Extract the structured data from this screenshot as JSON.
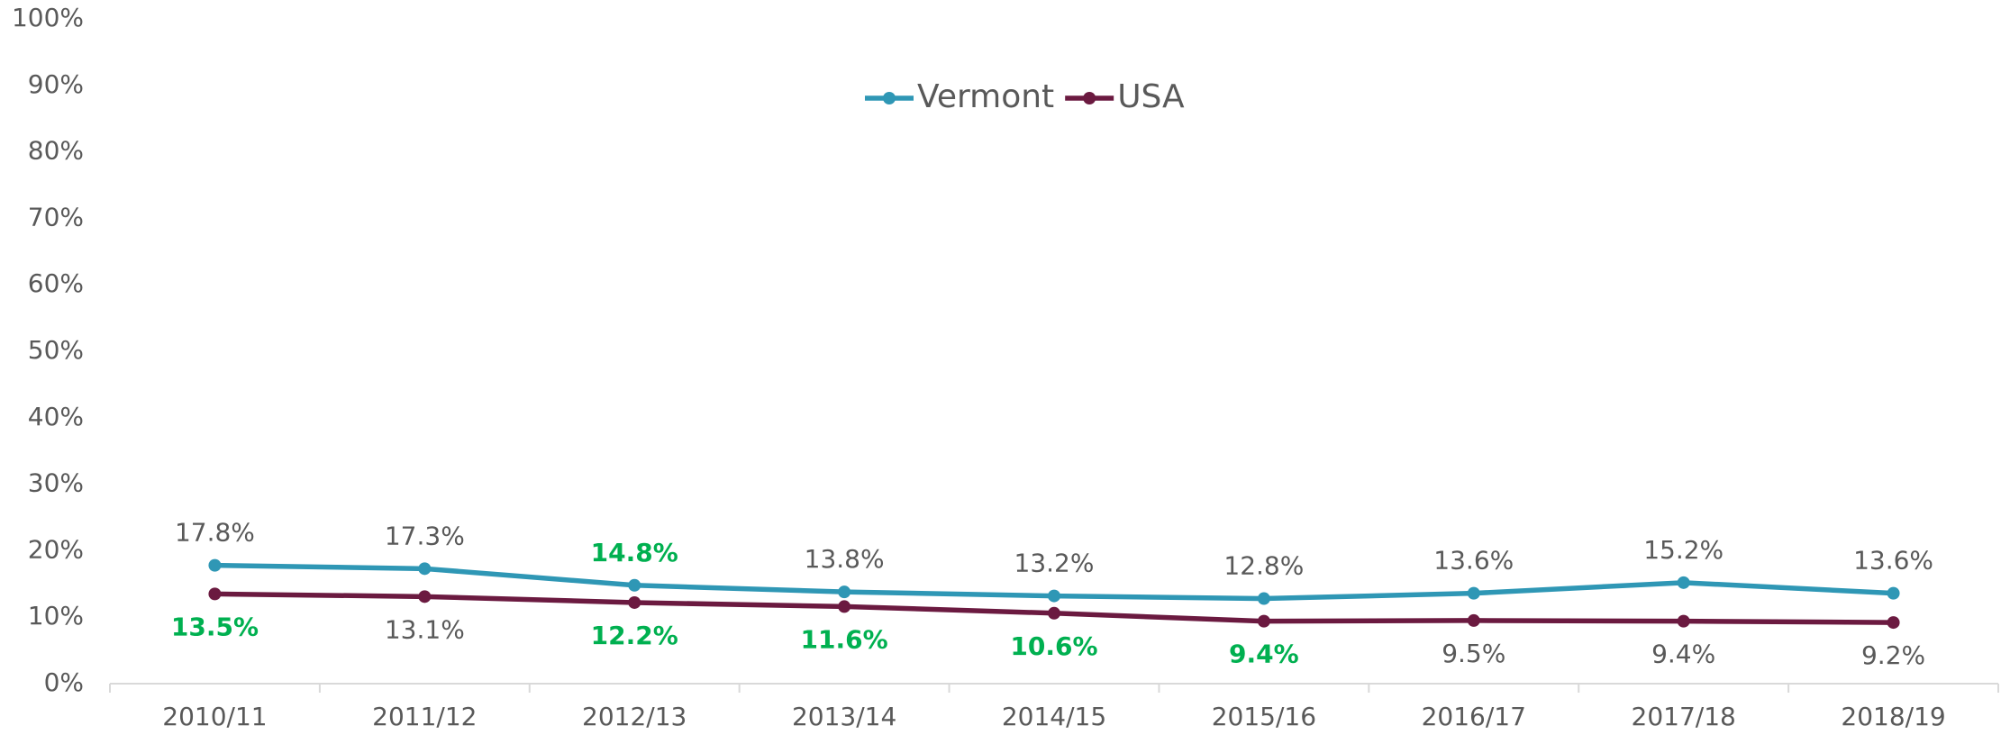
{
  "chart_data": {
    "type": "line",
    "categories": [
      "2010/11",
      "2011/12",
      "2012/13",
      "2013/14",
      "2014/15",
      "2015/16",
      "2016/17",
      "2017/18",
      "2018/19"
    ],
    "series": [
      {
        "name": "Vermont",
        "color": "#2f97b5",
        "values": [
          17.8,
          17.3,
          14.8,
          13.8,
          13.2,
          12.8,
          13.6,
          15.2,
          13.6
        ],
        "value_labels": [
          "17.8%",
          "17.3%",
          "14.8%",
          "13.8%",
          "13.2%",
          "12.8%",
          "13.6%",
          "15.2%",
          "13.6%"
        ],
        "value_label_colors": [
          "#595959",
          "#595959",
          "#00b050",
          "#595959",
          "#595959",
          "#595959",
          "#595959",
          "#595959",
          "#595959"
        ]
      },
      {
        "name": "USA",
        "color": "#6b1a40",
        "values": [
          13.5,
          13.1,
          12.2,
          11.6,
          10.6,
          9.4,
          9.5,
          9.4,
          9.2
        ],
        "value_labels": [
          "13.5%",
          "13.1%",
          "12.2%",
          "11.6%",
          "10.6%",
          "9.4%",
          "9.5%",
          "9.4%",
          "9.2%"
        ],
        "value_label_colors": [
          "#00b050",
          "#595959",
          "#00b050",
          "#00b050",
          "#00b050",
          "#00b050",
          "#595959",
          "#595959",
          "#595959"
        ]
      }
    ],
    "ylim": [
      0,
      100
    ],
    "yticks": [
      {
        "value": 0,
        "label": "0%"
      },
      {
        "value": 10,
        "label": "10%"
      },
      {
        "value": 20,
        "label": "20%"
      },
      {
        "value": 30,
        "label": "30%"
      },
      {
        "value": 40,
        "label": "40%"
      },
      {
        "value": 50,
        "label": "50%"
      },
      {
        "value": 60,
        "label": "60%"
      },
      {
        "value": 70,
        "label": "70%"
      },
      {
        "value": 80,
        "label": "80%"
      },
      {
        "value": 90,
        "label": "90%"
      },
      {
        "value": 100,
        "label": "100%"
      }
    ],
    "grid": false,
    "legend": "top"
  }
}
